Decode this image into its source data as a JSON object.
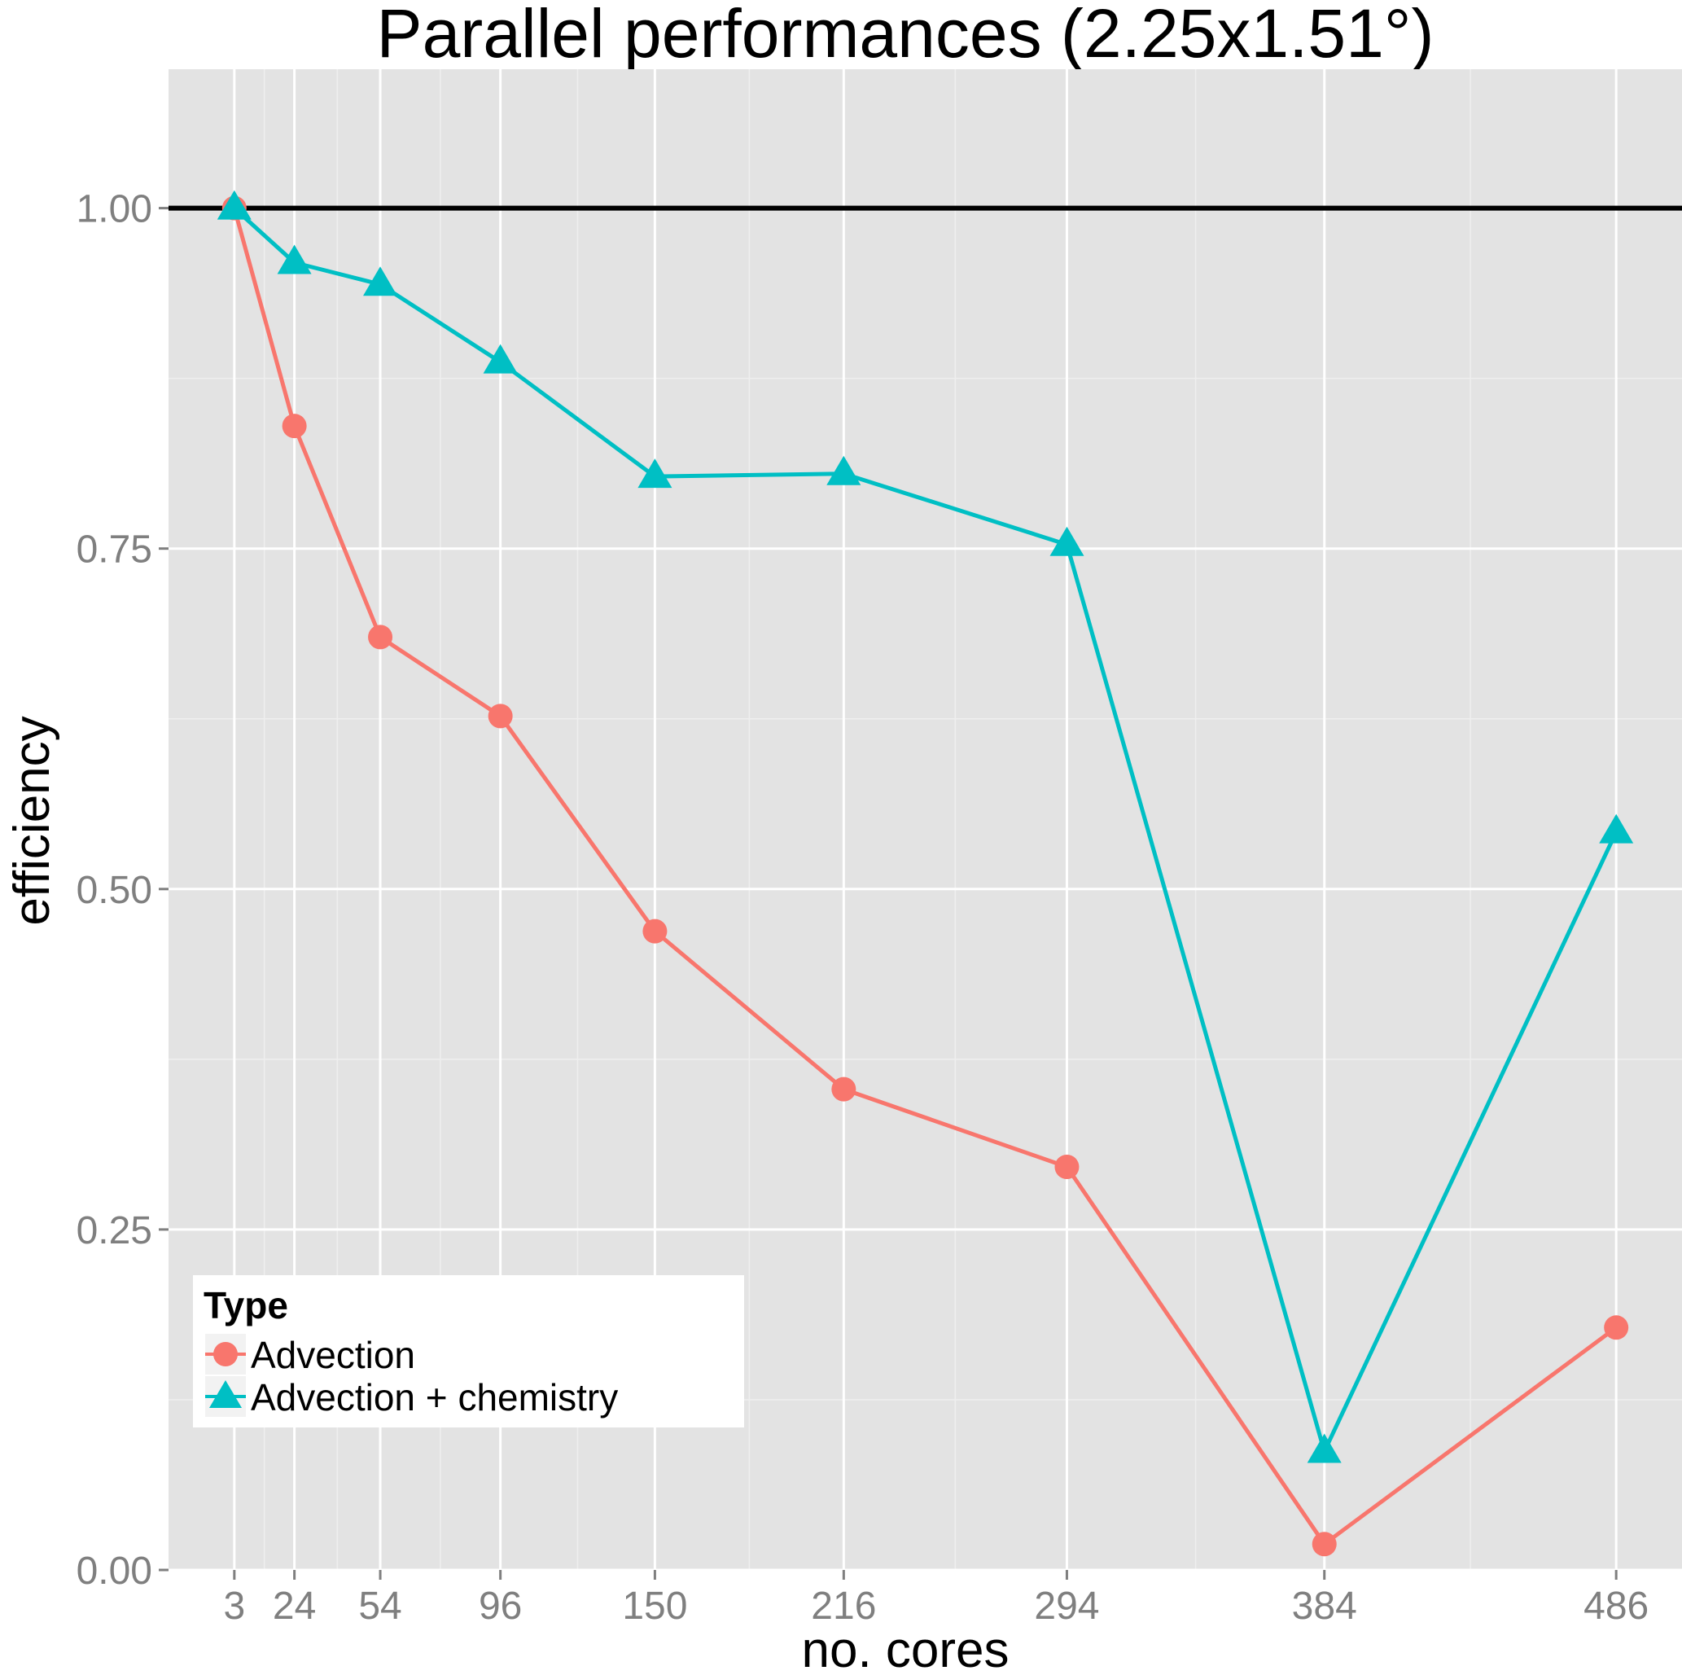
{
  "chart_data": {
    "type": "line",
    "title": "Parallel performances (2.25x1.51°)",
    "xlabel": "no. cores",
    "ylabel": "efficiency",
    "x": [
      3,
      24,
      54,
      96,
      150,
      216,
      294,
      384,
      486
    ],
    "x_tick_labels": [
      "3",
      "24",
      "54",
      "96",
      "150",
      "216",
      "294",
      "384",
      "486"
    ],
    "y_ticks": [
      0.0,
      0.25,
      0.5,
      0.75,
      1.0
    ],
    "y_tick_labels": [
      "0.00",
      "0.25",
      "0.50",
      "0.75",
      "1.00"
    ],
    "xlim": [
      -20,
      509
    ],
    "ylim": [
      -0.0,
      1.102
    ],
    "reference_line": 1.0,
    "reference_line_color": "#000000",
    "grid": true,
    "panel_background": "#e3e3e3",
    "legend": {
      "title": "Type",
      "position": "bottom-left inside"
    },
    "series": [
      {
        "name": "Advection",
        "marker": "circle",
        "color": "#f8766d",
        "values": [
          1.0,
          0.84,
          0.685,
          0.627,
          0.469,
          0.353,
          0.296,
          0.019,
          0.178
        ]
      },
      {
        "name": "Advection + chemistry",
        "marker": "triangle",
        "color": "#00bfc4",
        "values": [
          1.0,
          0.96,
          0.944,
          0.887,
          0.803,
          0.805,
          0.753,
          0.087,
          0.542
        ]
      }
    ]
  }
}
